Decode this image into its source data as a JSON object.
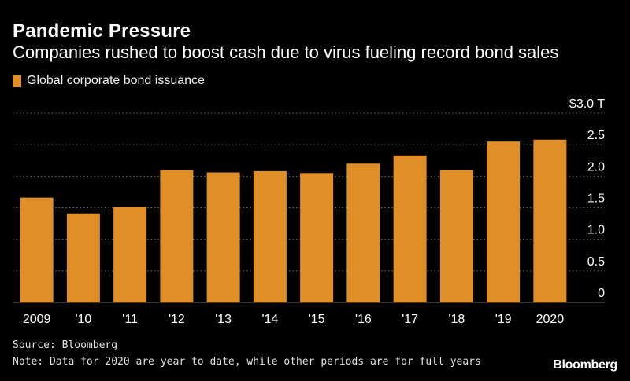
{
  "chart_data": {
    "type": "bar",
    "title": "Pandemic Pressure",
    "subtitle": "Companies rushed to boost cash due to virus fueling record bond sales",
    "series": [
      {
        "name": "Global corporate bond issuance",
        "values": [
          1.66,
          1.41,
          1.51,
          2.1,
          2.06,
          2.08,
          2.05,
          2.2,
          2.33,
          2.1,
          2.55,
          2.58
        ]
      }
    ],
    "categories": [
      "2009",
      "'10",
      "'11",
      "'12",
      "'13",
      "'14",
      "'15",
      "'16",
      "'17",
      "'18",
      "'19",
      "2020"
    ],
    "yticks": [
      "0",
      "0.5",
      "1.0",
      "1.5",
      "2.0",
      "2.5",
      "$3.0 T"
    ],
    "ylim": [
      0,
      3.0
    ],
    "grid": true,
    "legend_position": "top-left",
    "colors": {
      "bar": "#e08e27",
      "grid": "#6f6f6f",
      "background": "#000000"
    }
  },
  "footer": {
    "source": "Source: Bloomberg",
    "note": "Note: Data for 2020 are year to date, while other periods are for full years",
    "brand": "Bloomberg"
  }
}
